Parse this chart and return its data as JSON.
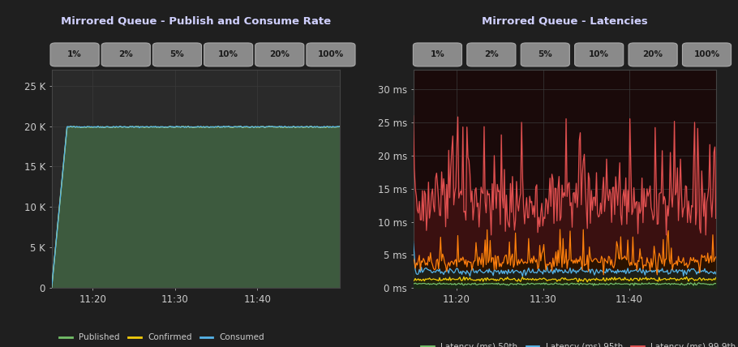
{
  "bg_color": "#1f1f1f",
  "plot_bg_left": "#2a2a2a",
  "plot_bg_right": "#1a0a0a",
  "grid_color": "#3a3a3a",
  "text_color": "#cccccc",
  "title_color": "#d0d0ff",
  "left_title": "Mirrored Queue - Publish and Consume Rate",
  "right_title": "Mirrored Queue - Latencies",
  "left_yticks": [
    0,
    5000,
    10000,
    15000,
    20000,
    25000
  ],
  "left_ytick_labels": [
    "0",
    "5 K",
    "10 K",
    "15 K",
    "20 K",
    "25 K"
  ],
  "left_ylim": [
    0,
    27000
  ],
  "right_yticks": [
    0,
    5,
    10,
    15,
    20,
    25,
    30
  ],
  "right_ytick_labels": [
    "0 ms",
    "5 ms",
    "10 ms",
    "15 ms",
    "20 ms",
    "25 ms",
    "30 ms"
  ],
  "right_ylim": [
    0,
    33
  ],
  "xtick_labels": [
    "11:20",
    "11:30",
    "11:40"
  ],
  "badge_labels": [
    "1%",
    "2%",
    "5%",
    "10%",
    "20%",
    "100%"
  ],
  "badge_bg": "#777777",
  "badge_text": "#222222",
  "published_color": "#73bf69",
  "confirmed_color": "#f2cc0c",
  "consumed_color": "#56b4e9",
  "fill_left": "#3d5a3e",
  "lat50_color": "#73bf69",
  "lat75_color": "#f2cc0c",
  "lat95_color": "#56b4e9",
  "lat99_color": "#ff7f0e",
  "lat999_color": "#e05050",
  "fill_999": "#3a1010",
  "fill_99": "#2a1200",
  "fill_95": "#1a2525",
  "fill_75": "#252500",
  "fill_50": "#1a2a1a"
}
